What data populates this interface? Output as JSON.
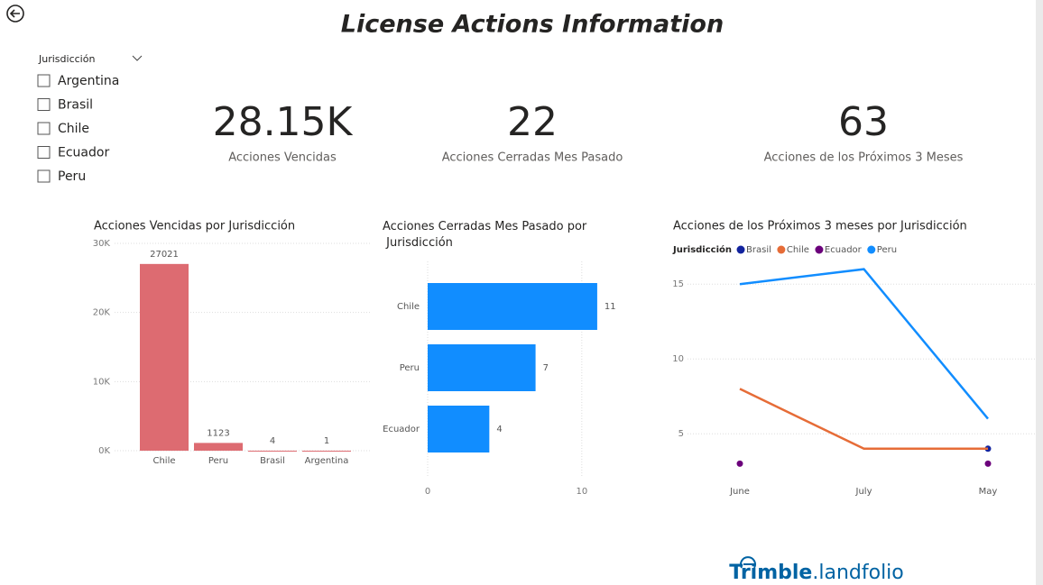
{
  "title": "License Actions Information",
  "slicer": {
    "title": "Jurisdicción",
    "items": [
      "Argentina",
      "Brasil",
      "Chile",
      "Ecuador",
      "Peru"
    ]
  },
  "cards": [
    {
      "value": "28.15K",
      "label": "Acciones Vencidas"
    },
    {
      "value": 22,
      "label": "Acciones Cerradas Mes Pasado"
    },
    {
      "value": 63,
      "label": "Acciones de los Próximos 3 Meses"
    }
  ],
  "logo": {
    "brand": "Trimble",
    "product": "landfolio"
  },
  "chart_data": [
    {
      "type": "bar",
      "title": "Acciones Vencidas por Jurisdicción",
      "categories": [
        "Chile",
        "Peru",
        "Brasil",
        "Argentina"
      ],
      "values": [
        27021,
        1123,
        4,
        1
      ],
      "color": "#dd6b71",
      "ylim": [
        0,
        30000
      ],
      "yticks": [
        {
          "value": 0,
          "label": "0K"
        },
        {
          "value": 10000,
          "label": "10K"
        },
        {
          "value": 20000,
          "label": "20K"
        },
        {
          "value": 30000,
          "label": "30K"
        }
      ],
      "grid": true
    },
    {
      "type": "hbar",
      "title": "Acciones Cerradas Mes Pasado por Jurisdicción",
      "categories": [
        "Chile",
        "Peru",
        "Ecuador"
      ],
      "values": [
        11,
        7,
        4
      ],
      "color": "#118dff",
      "xlim": [
        0,
        12
      ],
      "xticks": [
        0,
        10
      ],
      "grid": true
    },
    {
      "type": "line",
      "title": "Acciones de los Próximos 3 meses por Jurisdicción",
      "legend_title": "Jurisdicción",
      "categories": [
        "June",
        "July",
        "May"
      ],
      "series": [
        {
          "name": "Brasil",
          "color": "#12239e",
          "values": [
            null,
            null,
            4
          ]
        },
        {
          "name": "Chile",
          "color": "#e66c37",
          "values": [
            8,
            4,
            4
          ]
        },
        {
          "name": "Ecuador",
          "color": "#6b007b",
          "values": [
            3,
            null,
            3
          ]
        },
        {
          "name": "Peru",
          "color": "#118dff",
          "values": [
            15,
            16,
            6
          ]
        }
      ],
      "ylim": [
        2,
        17
      ],
      "yticks": [
        5,
        10,
        15
      ],
      "grid": true
    }
  ]
}
